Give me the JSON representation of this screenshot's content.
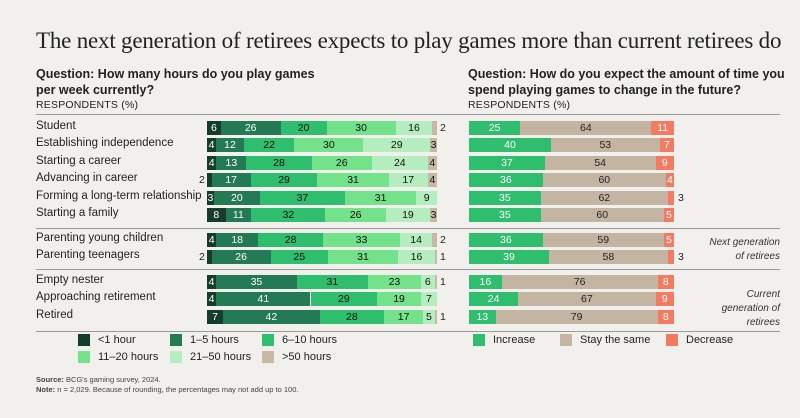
{
  "title": "The next generation of retirees expects to play games more than current retirees do",
  "left": {
    "question": "Question: How many hours do you play games per week currently?",
    "respondents": "RESPONDENTS (%)"
  },
  "right": {
    "question": "Question: How do you expect the amount of time you spend playing games to change in the future?",
    "respondents": "RESPONDENTS (%)"
  },
  "colors": {
    "lt1": "#163d2c",
    "h1_5": "#237a54",
    "h6_10": "#2fbd6e",
    "h11_20": "#74e28a",
    "h21_50": "#b5eebe",
    "gt50": "#c8b8a6",
    "increase": "#2fbd6e",
    "same": "#c4b5a3",
    "decrease": "#f47a62"
  },
  "groups": [
    {
      "note": ""
    },
    {
      "note": "Next generation of retirees"
    },
    {
      "note": "Current generation of retirees"
    }
  ],
  "chart_data": [
    {
      "type": "bar",
      "stacked": true,
      "orientation": "horizontal",
      "categories": [
        "Student",
        "Establishing independence",
        "Starting a career",
        "Advancing in career",
        "Forming a long-term relationship",
        "Starting a family",
        "Parenting young children",
        "Parenting teenagers",
        "Empty nester",
        "Approaching retirement",
        "Retired"
      ],
      "series": [
        {
          "name": "<1 hour",
          "values": [
            6,
            4,
            4,
            2,
            3,
            8,
            4,
            2,
            4,
            4,
            7
          ]
        },
        {
          "name": "1–5 hours",
          "values": [
            26,
            12,
            13,
            17,
            20,
            11,
            18,
            26,
            35,
            41,
            42
          ]
        },
        {
          "name": "6–10 hours",
          "values": [
            20,
            22,
            28,
            29,
            37,
            32,
            28,
            25,
            31,
            29,
            28
          ]
        },
        {
          "name": "11–20 hours",
          "values": [
            30,
            30,
            26,
            31,
            31,
            26,
            33,
            31,
            23,
            19,
            17
          ]
        },
        {
          "name": "21–50 hours",
          "values": [
            16,
            29,
            24,
            17,
            9,
            19,
            14,
            16,
            6,
            7,
            5
          ]
        },
        {
          "name": ">50 hours",
          "values": [
            2,
            3,
            4,
            4,
            0,
            3,
            2,
            1,
            1,
            0,
            1
          ]
        }
      ]
    },
    {
      "type": "bar",
      "stacked": true,
      "orientation": "horizontal",
      "categories": [
        "Student",
        "Establishing independence",
        "Starting a career",
        "Advancing in career",
        "Forming a long-term relationship",
        "Starting a family",
        "Parenting young children",
        "Parenting teenagers",
        "Empty nester",
        "Approaching retirement",
        "Retired"
      ],
      "series": [
        {
          "name": "Increase",
          "values": [
            25,
            40,
            37,
            36,
            35,
            35,
            36,
            39,
            16,
            24,
            13
          ]
        },
        {
          "name": "Stay the same",
          "values": [
            64,
            53,
            54,
            60,
            62,
            60,
            59,
            58,
            76,
            67,
            79
          ]
        },
        {
          "name": "Decrease",
          "values": [
            11,
            7,
            9,
            4,
            3,
            5,
            5,
            3,
            8,
            9,
            8
          ]
        }
      ]
    }
  ],
  "footer": {
    "source_label": "Source:",
    "source_text": " BCG's gaming survey, 2024.",
    "note_label": "Note:",
    "note_text": " n = 2,029. Because of rounding, the percentages may not add up to 100."
  }
}
